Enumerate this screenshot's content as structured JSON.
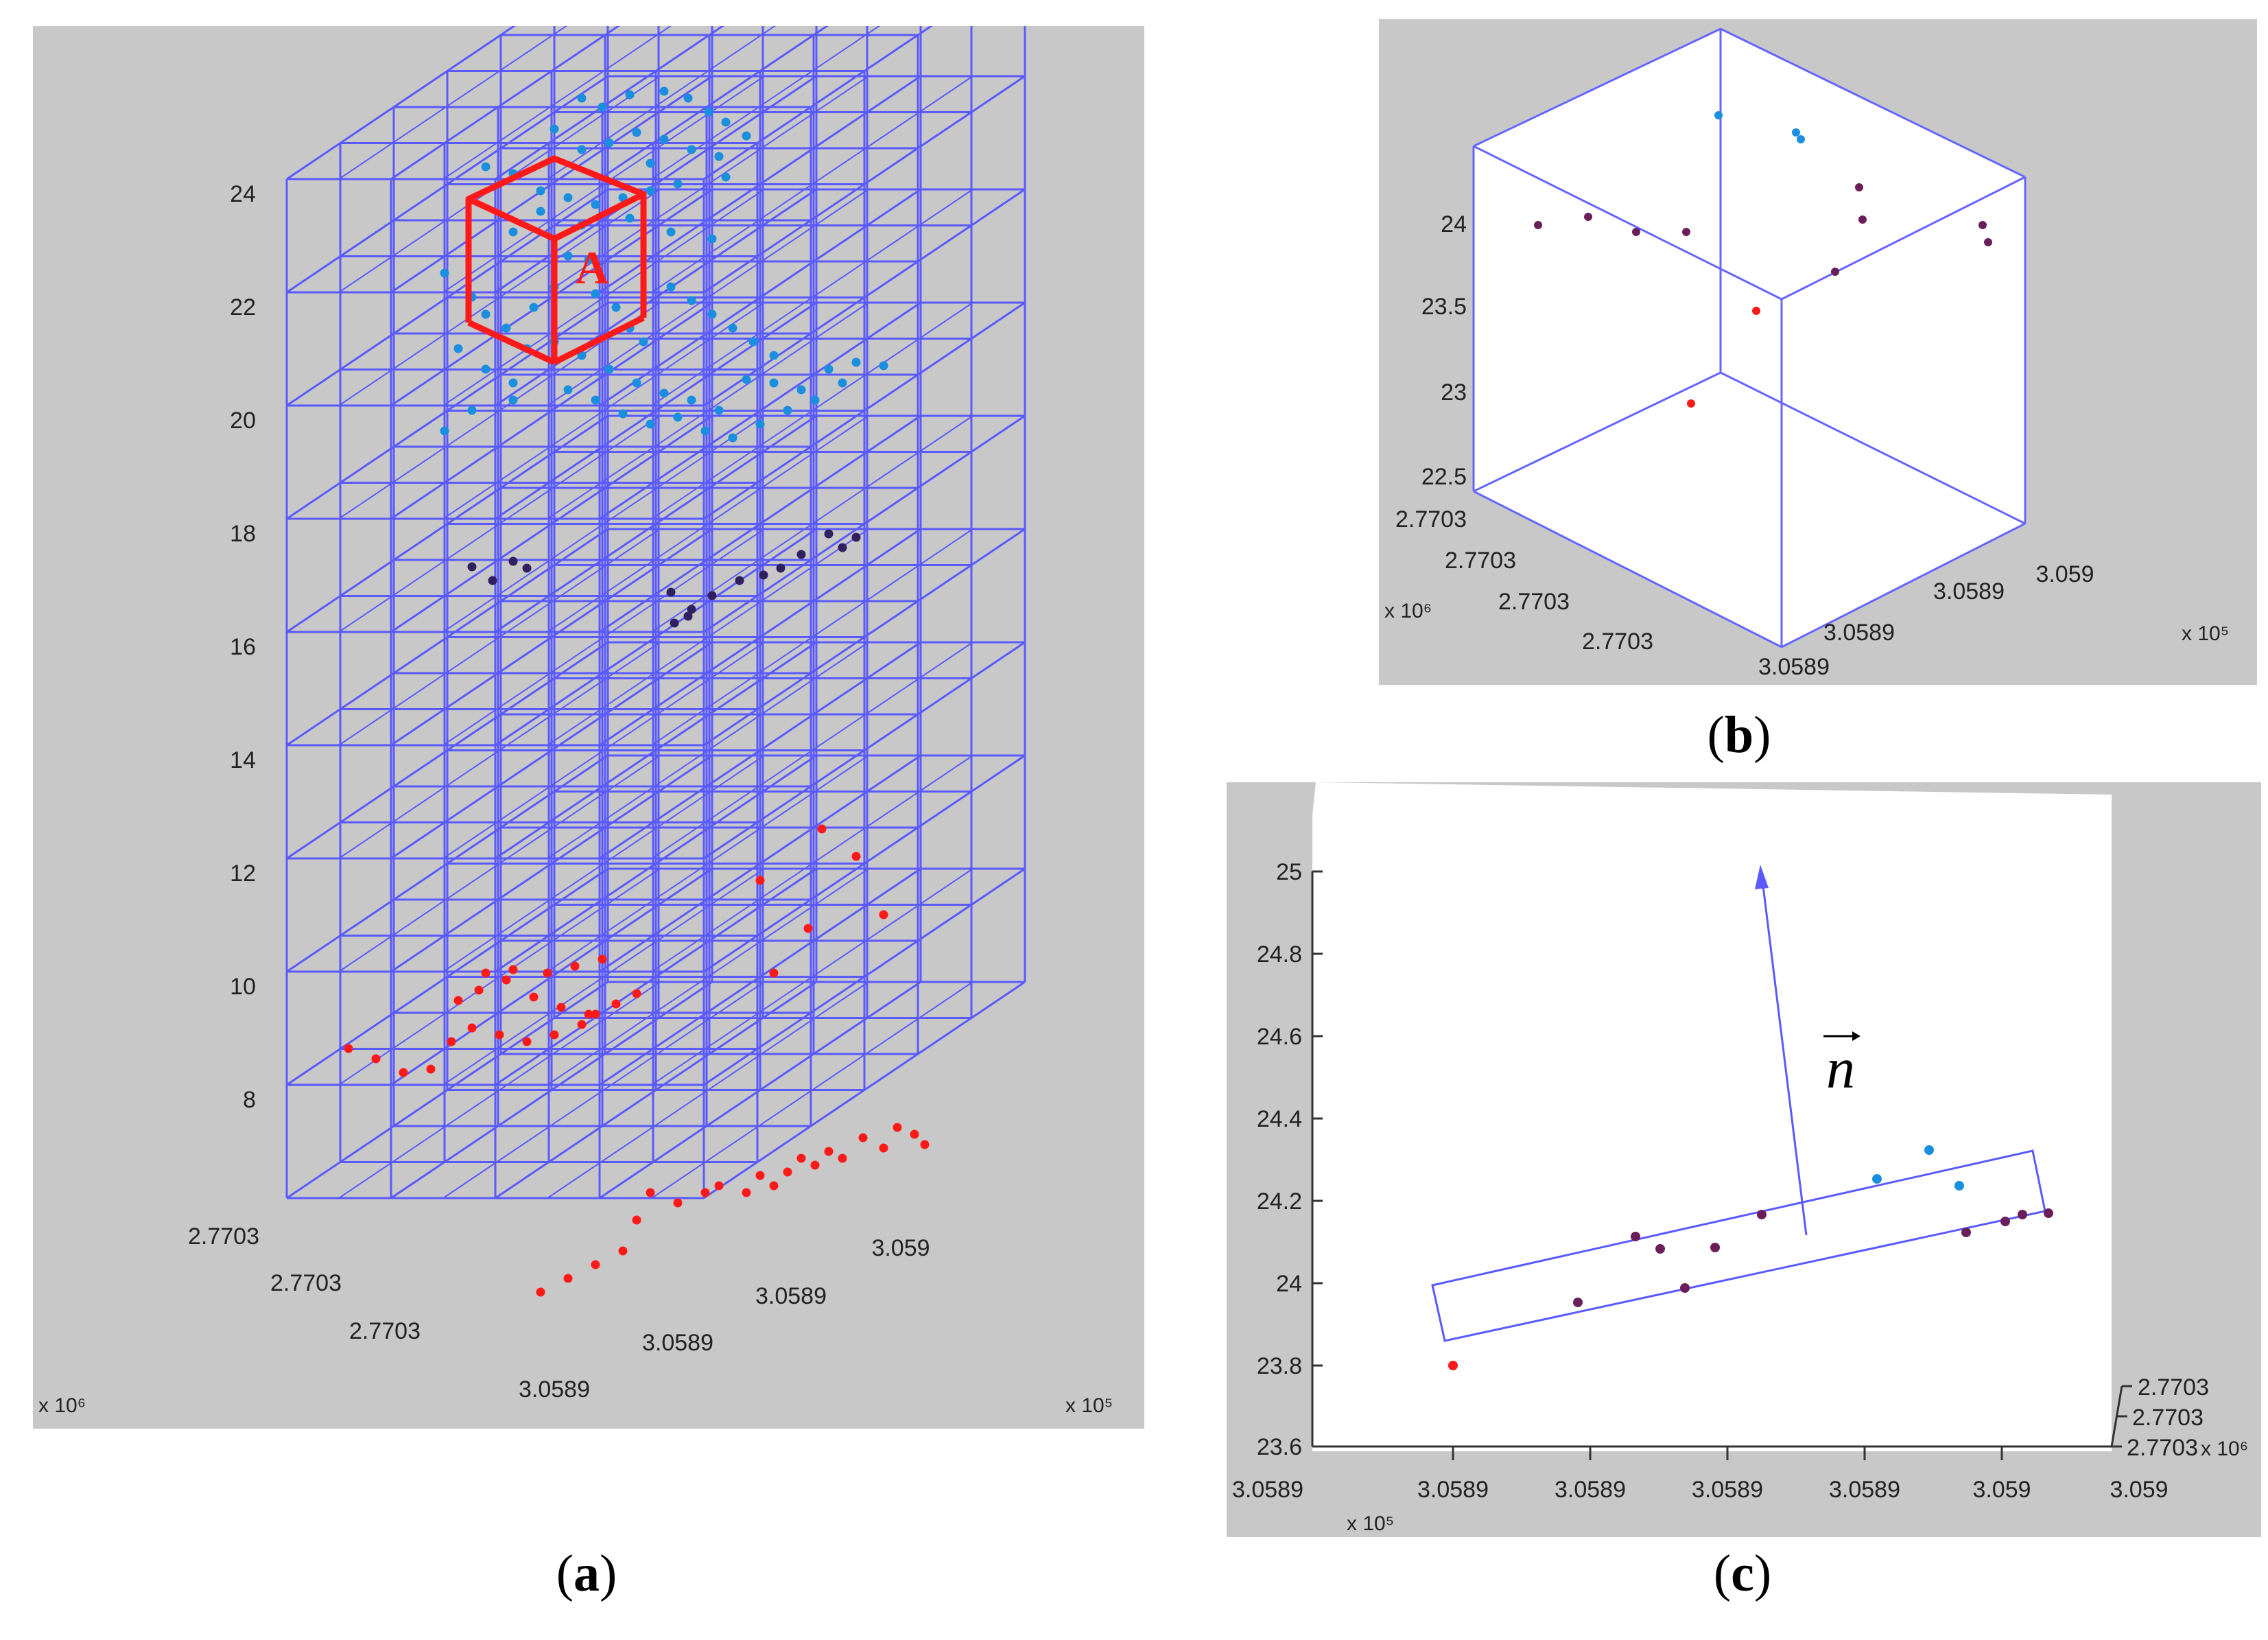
{
  "panel_a": {
    "z_ticks": [
      "24",
      "22",
      "20",
      "18",
      "16",
      "14",
      "12",
      "10",
      "8"
    ],
    "y_ticks": [
      "2.7703",
      "2.7703",
      "2.7703"
    ],
    "x_ticks": [
      "3.0589",
      "3.0589",
      "3.0589",
      "3.059"
    ],
    "y_exponent": "x 10⁶",
    "x_exponent": "x 10⁵",
    "box_label": "A",
    "caption": "a",
    "colors": {
      "grid": "#5a5aff",
      "highlight": "#ff1a1a",
      "upper_points": "#1a8fe0",
      "middle_points": "#302060",
      "lower_points": "#ff1a1a"
    }
  },
  "panel_b": {
    "z_ticks": [
      "24",
      "23.5",
      "23",
      "22.5"
    ],
    "y_ticks": [
      "2.7703",
      "2.7703",
      "2.7703",
      "2.7703"
    ],
    "x_ticks": [
      "3.0589",
      "3.0589",
      "3.0589",
      "3.059"
    ],
    "y_exponent": "x 10⁶",
    "x_exponent": "x 10⁵",
    "caption": "b"
  },
  "panel_c": {
    "z_ticks": [
      "25",
      "24.8",
      "24.6",
      "24.4",
      "24.2",
      "24",
      "23.8",
      "23.6"
    ],
    "x_ticks": [
      "3.0589",
      "3.0589",
      "3.0589",
      "3.0589",
      "3.0589",
      "3.059",
      "3.059"
    ],
    "y_ticks": [
      "2.7703",
      "2.7703",
      "2.7703"
    ],
    "x_exponent": "x 10⁵",
    "y_exponent": "x 10⁶",
    "normal_label": "n",
    "caption": "c"
  }
}
